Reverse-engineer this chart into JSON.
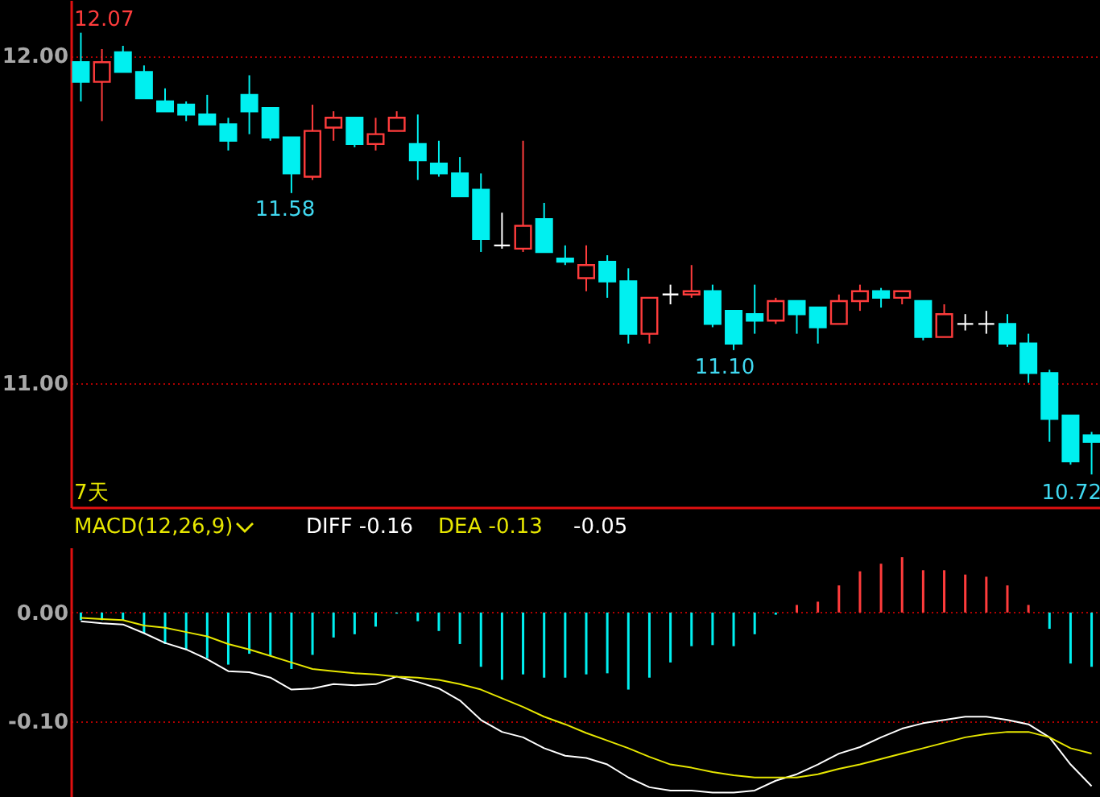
{
  "chart_data": [
    {
      "type": "candlestick",
      "categories": [
        null,
        null,
        null,
        null,
        null,
        null,
        null,
        null,
        null,
        null,
        null,
        null,
        null,
        null,
        null,
        null,
        null,
        null,
        null,
        null,
        null,
        null,
        null,
        null,
        null,
        null,
        null,
        null,
        null,
        null,
        null,
        null,
        null,
        null,
        null,
        null,
        null,
        null,
        null,
        null,
        null,
        null,
        null,
        null,
        null,
        null,
        null,
        null,
        null
      ],
      "ohlc": [
        [
          11.98,
          12.07,
          11.86,
          11.92
        ],
        [
          11.92,
          12.02,
          11.8,
          11.98
        ],
        [
          12.01,
          12.03,
          11.95,
          11.95
        ],
        [
          11.95,
          11.97,
          11.87,
          11.87
        ],
        [
          11.86,
          11.9,
          11.83,
          11.83
        ],
        [
          11.85,
          11.86,
          11.8,
          11.82
        ],
        [
          11.82,
          11.88,
          11.79,
          11.79
        ],
        [
          11.79,
          11.81,
          11.71,
          11.74
        ],
        [
          11.88,
          11.94,
          11.76,
          11.83
        ],
        [
          11.84,
          11.84,
          11.74,
          11.75
        ],
        [
          11.75,
          11.75,
          11.58,
          11.64
        ],
        [
          11.63,
          11.85,
          11.62,
          11.77
        ],
        [
          11.78,
          11.83,
          11.74,
          11.81
        ],
        [
          11.81,
          11.81,
          11.72,
          11.73
        ],
        [
          11.73,
          11.81,
          11.71,
          11.76
        ],
        [
          11.77,
          11.83,
          11.77,
          11.81
        ],
        [
          11.73,
          11.82,
          11.62,
          11.68
        ],
        [
          11.67,
          11.74,
          11.63,
          11.64
        ],
        [
          11.64,
          11.69,
          11.57,
          11.57
        ],
        [
          11.59,
          11.64,
          11.4,
          11.44
        ],
        [
          11.42,
          11.52,
          11.41,
          11.42
        ],
        [
          11.41,
          11.74,
          11.4,
          11.48
        ],
        [
          11.5,
          11.55,
          11.4,
          11.4
        ],
        [
          11.38,
          11.42,
          11.36,
          11.37
        ],
        [
          11.32,
          11.42,
          11.28,
          11.36
        ],
        [
          11.37,
          11.39,
          11.26,
          11.31
        ],
        [
          11.31,
          11.35,
          11.12,
          11.15
        ],
        [
          11.15,
          11.26,
          11.12,
          11.26
        ],
        [
          11.27,
          11.3,
          11.24,
          11.27
        ],
        [
          11.27,
          11.36,
          11.26,
          11.28
        ],
        [
          11.28,
          11.3,
          11.17,
          11.18
        ],
        [
          11.22,
          11.22,
          11.1,
          11.12
        ],
        [
          11.21,
          11.3,
          11.15,
          11.19
        ],
        [
          11.19,
          11.26,
          11.18,
          11.25
        ],
        [
          11.25,
          11.25,
          11.15,
          11.21
        ],
        [
          11.23,
          11.23,
          11.12,
          11.17
        ],
        [
          11.18,
          11.27,
          11.18,
          11.25
        ],
        [
          11.25,
          11.3,
          11.22,
          11.28
        ],
        [
          11.28,
          11.29,
          11.23,
          11.26
        ],
        [
          11.26,
          11.28,
          11.24,
          11.28
        ],
        [
          11.25,
          11.25,
          11.13,
          11.14
        ],
        [
          11.14,
          11.24,
          11.14,
          11.21
        ],
        [
          11.18,
          11.21,
          11.16,
          11.18
        ],
        [
          11.18,
          11.22,
          11.15,
          11.18
        ],
        [
          11.18,
          11.21,
          11.11,
          11.12
        ],
        [
          11.12,
          11.15,
          11.0,
          11.03
        ],
        [
          11.03,
          11.04,
          10.82,
          10.89
        ],
        [
          10.9,
          10.9,
          10.75,
          10.76
        ],
        [
          10.84,
          10.85,
          10.72,
          10.82
        ]
      ],
      "colors": [
        "#00f0f0",
        "#ff3c3c",
        "#00f0f0",
        "#00f0f0",
        "#00f0f0",
        "#00f0f0",
        "#00f0f0",
        "#00f0f0",
        "#00f0f0",
        "#00f0f0",
        "#00f0f0",
        "#ff3c3c",
        "#ff3c3c",
        "#00f0f0",
        "#ff3c3c",
        "#ff3c3c",
        "#00f0f0",
        "#00f0f0",
        "#00f0f0",
        "#00f0f0",
        "#ffffff",
        "#ff3c3c",
        "#00f0f0",
        "#00f0f0",
        "#ff3c3c",
        "#00f0f0",
        "#00f0f0",
        "#ff3c3c",
        "#ffffff",
        "#ff3c3c",
        "#00f0f0",
        "#00f0f0",
        "#00f0f0",
        "#ff3c3c",
        "#00f0f0",
        "#00f0f0",
        "#ff3c3c",
        "#ff3c3c",
        "#00f0f0",
        "#ff3c3c",
        "#00f0f0",
        "#ff3c3c",
        "#ffffff",
        "#ffffff",
        "#00f0f0",
        "#00f0f0",
        "#00f0f0",
        "#00f0f0",
        "#00f0f0"
      ],
      "ylim": [
        10.62,
        12.17
      ],
      "yticks": [
        {
          "value": 11,
          "label": "11.00"
        },
        {
          "value": 12,
          "label": "12.00"
        }
      ],
      "grid": "y",
      "tick_labels": "y",
      "annotations": [
        "12.07",
        "11.58",
        "11.10",
        "10.72",
        "7天"
      ]
    },
    {
      "type": "bar",
      "title": "MACD(12,26,9)",
      "categories": [
        null,
        null,
        null,
        null,
        null,
        null,
        null,
        null,
        null,
        null,
        null,
        null,
        null,
        null,
        null,
        null,
        null,
        null,
        null,
        null,
        null,
        null,
        null,
        null,
        null,
        null,
        null,
        null,
        null,
        null,
        null,
        null,
        null,
        null,
        null,
        null,
        null,
        null,
        null,
        null,
        null,
        null,
        null,
        null,
        null,
        null,
        null,
        null,
        null
      ],
      "series": [
        {
          "type": "bar",
          "values": [
            -0.007,
            -0.007,
            -0.007,
            -0.019,
            -0.029,
            -0.034,
            -0.042,
            -0.048,
            -0.038,
            -0.04,
            -0.052,
            -0.039,
            -0.023,
            -0.02,
            -0.013,
            -0.001,
            -0.008,
            -0.017,
            -0.029,
            -0.05,
            -0.062,
            -0.057,
            -0.06,
            -0.06,
            -0.057,
            -0.056,
            -0.071,
            -0.06,
            -0.046,
            -0.031,
            -0.03,
            -0.031,
            -0.02,
            -0.002,
            0.007,
            0.01,
            0.025,
            0.038,
            0.045,
            0.051,
            0.039,
            0.039,
            0.035,
            0.033,
            0.025,
            0.007,
            -0.015,
            -0.047,
            -0.05
          ],
          "colors": [
            "#00f0f0",
            "#00f0f0",
            "#00f0f0",
            "#00f0f0",
            "#00f0f0",
            "#00f0f0",
            "#00f0f0",
            "#00f0f0",
            "#00f0f0",
            "#00f0f0",
            "#00f0f0",
            "#00f0f0",
            "#00f0f0",
            "#00f0f0",
            "#00f0f0",
            "#00f0f0",
            "#00f0f0",
            "#00f0f0",
            "#00f0f0",
            "#00f0f0",
            "#00f0f0",
            "#00f0f0",
            "#00f0f0",
            "#00f0f0",
            "#00f0f0",
            "#00f0f0",
            "#00f0f0",
            "#00f0f0",
            "#00f0f0",
            "#00f0f0",
            "#00f0f0",
            "#00f0f0",
            "#00f0f0",
            "#00f0f0",
            "#ff3c3c",
            "#ff3c3c",
            "#ff3c3c",
            "#ff3c3c",
            "#ff3c3c",
            "#ff3c3c",
            "#ff3c3c",
            "#ff3c3c",
            "#ff3c3c",
            "#ff3c3c",
            "#ff3c3c",
            "#ff3c3c",
            "#00f0f0",
            "#00f0f0",
            "#00f0f0"
          ]
        },
        {
          "type": "line",
          "name": "DIFF -0.16",
          "color": "#ffffff",
          "values": [
            -0.008,
            -0.01,
            -0.011,
            -0.019,
            -0.028,
            -0.034,
            -0.043,
            -0.054,
            -0.055,
            -0.06,
            -0.071,
            -0.07,
            -0.066,
            -0.067,
            -0.066,
            -0.059,
            -0.064,
            -0.07,
            -0.081,
            -0.099,
            -0.11,
            -0.115,
            -0.125,
            -0.132,
            -0.134,
            -0.14,
            -0.152,
            -0.161,
            -0.164,
            -0.164,
            -0.166,
            -0.166,
            -0.164,
            -0.155,
            -0.149,
            -0.14,
            -0.13,
            -0.124,
            -0.115,
            -0.107,
            -0.102,
            -0.099,
            -0.096,
            -0.096,
            -0.099,
            -0.103,
            -0.115,
            -0.14,
            -0.16
          ]
        },
        {
          "type": "line",
          "name": "DEA -0.13",
          "color": "#e6e600",
          "values": [
            -0.005,
            -0.006,
            -0.007,
            -0.012,
            -0.014,
            -0.018,
            -0.022,
            -0.029,
            -0.034,
            -0.04,
            -0.046,
            -0.052,
            -0.054,
            -0.056,
            -0.057,
            -0.059,
            -0.06,
            -0.062,
            -0.066,
            -0.071,
            -0.079,
            -0.087,
            -0.096,
            -0.103,
            -0.111,
            -0.118,
            -0.125,
            -0.133,
            -0.14,
            -0.143,
            -0.147,
            -0.15,
            -0.152,
            -0.152,
            -0.152,
            -0.149,
            -0.144,
            -0.14,
            -0.135,
            -0.13,
            -0.125,
            -0.12,
            -0.115,
            -0.112,
            -0.11,
            -0.11,
            -0.115,
            -0.125,
            -0.13
          ]
        }
      ],
      "ylim": [
        -0.17,
        0.06
      ],
      "yticks": [
        {
          "value": -0.1,
          "label": "-0.10"
        },
        {
          "value": 0,
          "label": "0.00"
        }
      ],
      "grid": "y",
      "tick_labels": "y",
      "annotations": [
        "-0.05"
      ]
    }
  ]
}
